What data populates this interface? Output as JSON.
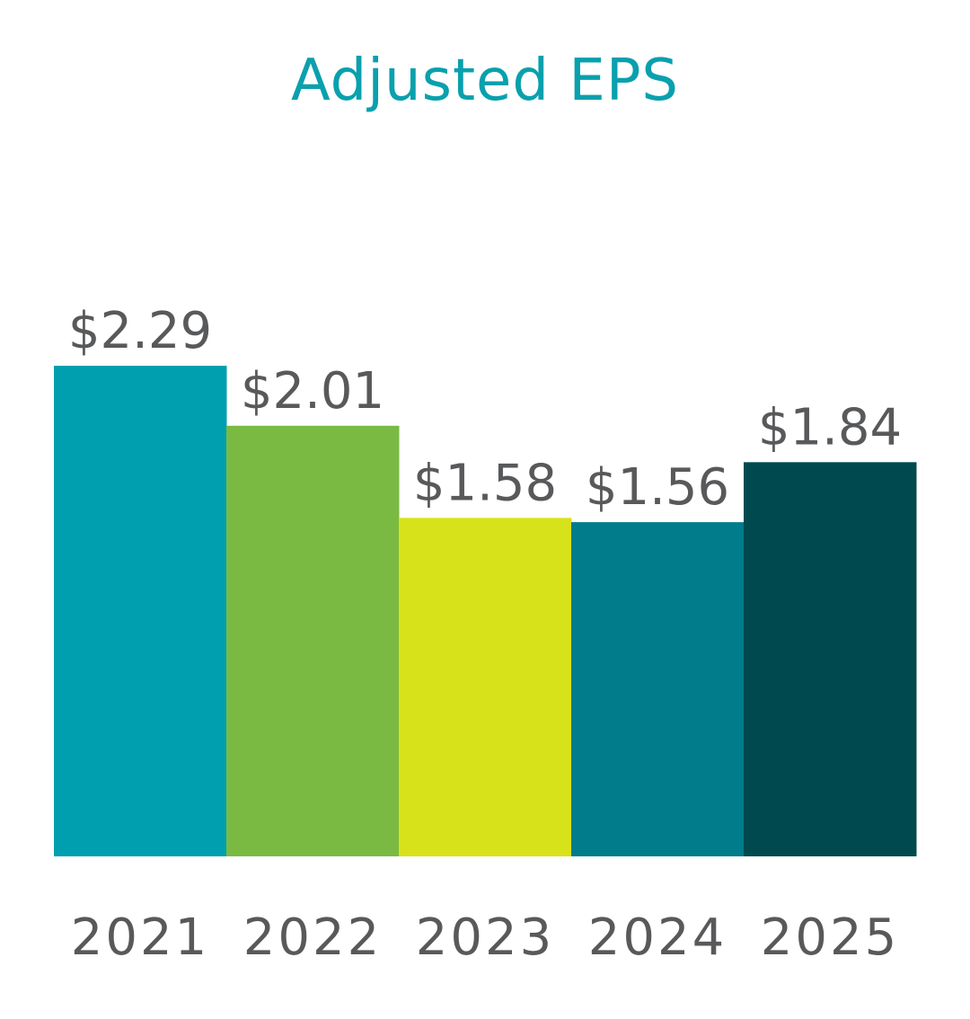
{
  "chart_data": {
    "type": "bar",
    "title": "Adjusted EPS",
    "categories": [
      "2021",
      "2022",
      "2023",
      "2024",
      "2025"
    ],
    "values": [
      2.29,
      2.01,
      1.58,
      1.56,
      1.84
    ],
    "value_labels": [
      "$2.29",
      "$2.01",
      "$1.58",
      "$1.56",
      "$1.84"
    ],
    "bar_colors": [
      "#009faf",
      "#7aba43",
      "#d8e21a",
      "#007c8a",
      "#004a4f"
    ],
    "title_color": "#0aa0ad",
    "text_color": "#58595b",
    "xlabel": "",
    "ylabel": "",
    "grid": false,
    "legend": "none"
  }
}
